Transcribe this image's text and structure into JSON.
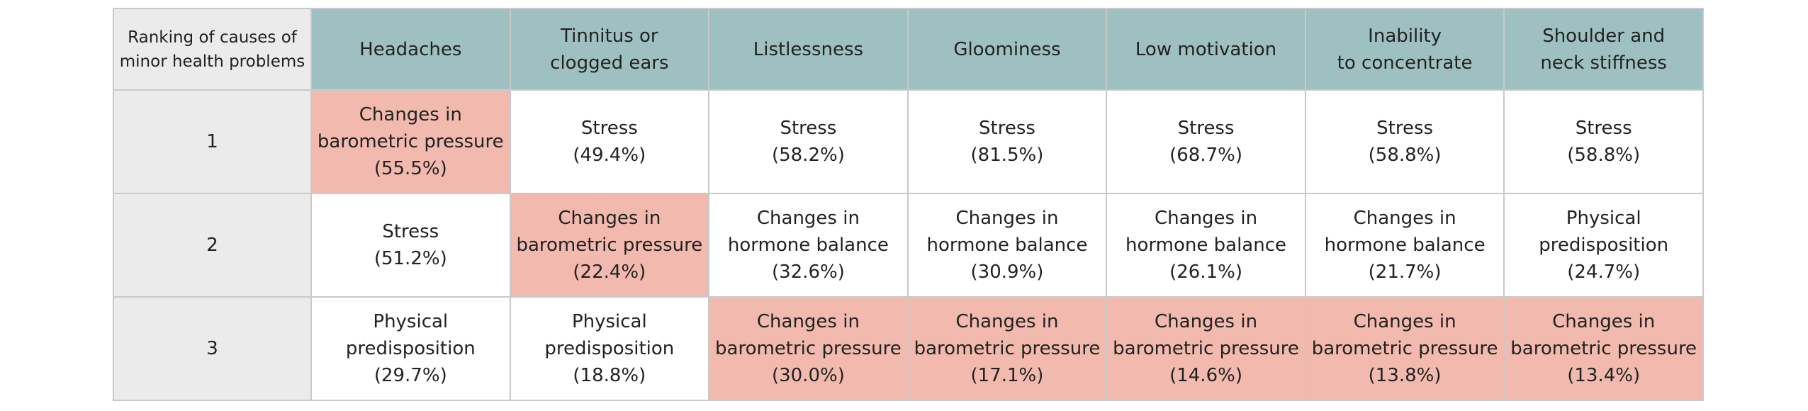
{
  "table": {
    "header": [
      "Ranking of causes of\nminor health problems",
      "Headaches",
      "Tinnitus or\nclogged ears",
      "Listlessness",
      "Gloominess",
      "Low motivation",
      "Inability\nto concentrate",
      "Shoulder and\nneck stiffness"
    ],
    "rows": [
      {
        "rank": "1",
        "cells": [
          {
            "cause": "Changes in\nbarometric pressure",
            "share": "(55.5%)",
            "highlight": true
          },
          {
            "cause": "Stress",
            "share": "(49.4%)",
            "highlight": false
          },
          {
            "cause": "Stress",
            "share": "(58.2%)",
            "highlight": false
          },
          {
            "cause": "Stress",
            "share": "(81.5%)",
            "highlight": false
          },
          {
            "cause": "Stress",
            "share": "(68.7%)",
            "highlight": false
          },
          {
            "cause": "Stress",
            "share": "(58.8%)",
            "highlight": false
          },
          {
            "cause": "Stress",
            "share": "(58.8%)",
            "highlight": false
          }
        ]
      },
      {
        "rank": "2",
        "cells": [
          {
            "cause": "Stress",
            "share": "(51.2%)",
            "highlight": false
          },
          {
            "cause": "Changes in\nbarometric pressure",
            "share": "(22.4%)",
            "highlight": true
          },
          {
            "cause": "Changes in\nhormone balance",
            "share": "(32.6%)",
            "highlight": false
          },
          {
            "cause": "Changes in\nhormone balance",
            "share": "(30.9%)",
            "highlight": false
          },
          {
            "cause": "Changes in\nhormone balance",
            "share": "(26.1%)",
            "highlight": false
          },
          {
            "cause": "Changes in\nhormone balance",
            "share": "(21.7%)",
            "highlight": false
          },
          {
            "cause": "Physical\npredisposition",
            "share": "(24.7%)",
            "highlight": false
          }
        ]
      },
      {
        "rank": "3",
        "cells": [
          {
            "cause": "Physical\npredisposition",
            "share": "(29.7%)",
            "highlight": false
          },
          {
            "cause": "Physical\npredisposition",
            "share": "(18.8%)",
            "highlight": false
          },
          {
            "cause": "Changes in\nbarometric pressure",
            "share": "(30.0%)",
            "highlight": true
          },
          {
            "cause": "Changes in\nbarometric pressure",
            "share": "(17.1%)",
            "highlight": true
          },
          {
            "cause": "Changes in\nbarometric pressure",
            "share": "(14.6%)",
            "highlight": true
          },
          {
            "cause": "Changes in\nbarometric pressure",
            "share": "(13.8%)",
            "highlight": true
          },
          {
            "cause": "Changes in\nbarometric pressure",
            "share": "(13.4%)",
            "highlight": true
          }
        ]
      }
    ]
  }
}
